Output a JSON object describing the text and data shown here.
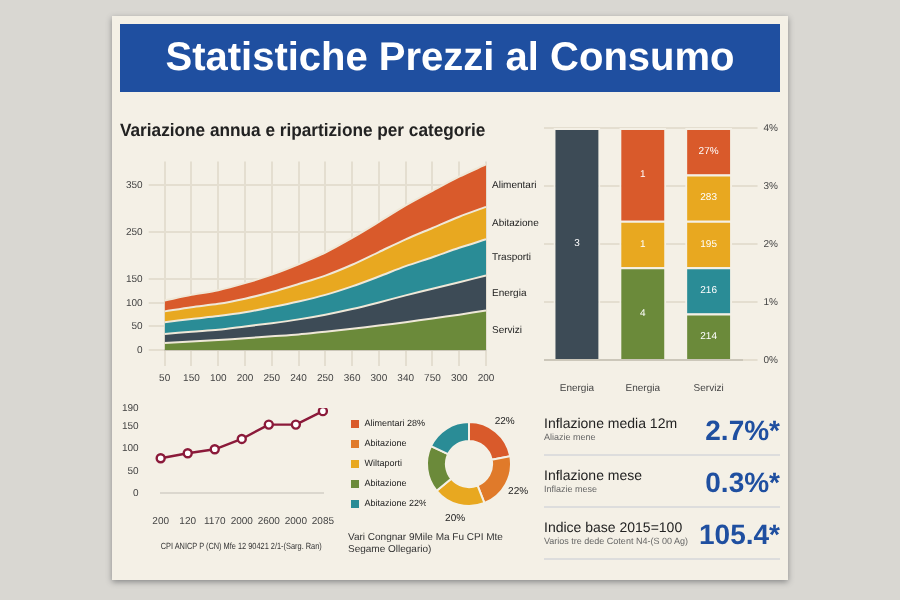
{
  "chart_data": [
    {
      "type": "area",
      "title": "Statistiche Prezzi al Consumo",
      "subtitle": "Variazione annua e ripartizione per categorie",
      "stacked": true,
      "grid": true,
      "categories": [
        "50",
        "150",
        "100",
        "200",
        "250",
        "240",
        "250",
        "360",
        "300",
        "340",
        "750",
        "300",
        "200"
      ],
      "ylim": [
        0,
        400
      ],
      "yticks": [
        0,
        50,
        100,
        150,
        250,
        350
      ],
      "series": [
        {
          "name": "Servizi",
          "color": "#6b8a3a",
          "values": [
            15,
            18,
            21,
            25,
            29,
            33,
            39,
            45,
            52,
            59,
            67,
            75,
            84
          ]
        },
        {
          "name": "Energia",
          "color": "#3d4b56",
          "values": [
            19,
            21,
            22,
            25,
            28,
            32,
            36,
            42,
            49,
            57,
            63,
            69,
            74
          ]
        },
        {
          "name": "Trasporti",
          "color": "#2a8c96",
          "values": [
            25,
            27,
            29,
            30,
            34,
            38,
            42,
            48,
            55,
            62,
            67,
            73,
            77
          ]
        },
        {
          "name": "Abitazione",
          "color": "#e8a820",
          "values": [
            23,
            25,
            26,
            29,
            32,
            37,
            41,
            46,
            52,
            57,
            62,
            66,
            69
          ]
        },
        {
          "name": "Alimentari",
          "color": "#d95a2b",
          "values": [
            23,
            26,
            29,
            33,
            37,
            42,
            49,
            57,
            64,
            72,
            79,
            85,
            90
          ]
        }
      ]
    },
    {
      "type": "bar",
      "stacked": true,
      "grid": "y",
      "categories": [
        "Energia",
        "Energia",
        "Servizi"
      ],
      "ylim": [
        0,
        4
      ],
      "yticks": [
        {
          "value": 0,
          "label": "0%"
        },
        {
          "value": 1,
          "label": "1%"
        },
        {
          "value": 2,
          "label": "2%"
        },
        {
          "value": 3,
          "label": "3%"
        },
        {
          "value": 4,
          "label": "4%"
        }
      ],
      "series": [
        {
          "color": "#3d4b56",
          "values": [
            4,
            null,
            null
          ]
        },
        {
          "color": "#6b8a3a",
          "values": [
            null,
            1.6,
            0.8
          ]
        },
        {
          "color": "#2a8c96",
          "values": [
            null,
            null,
            0.8
          ]
        },
        {
          "color": "#e8a820",
          "values": [
            null,
            0.8,
            0.8
          ]
        },
        {
          "color": "#e8a820",
          "values": [
            null,
            null,
            0.8
          ]
        },
        {
          "color": "#d95a2b",
          "values": [
            null,
            1.6,
            0.8
          ]
        }
      ],
      "annotations": [
        "3",
        "4",
        "1",
        "1",
        "214",
        "216",
        "195",
        "283",
        "27%"
      ]
    },
    {
      "type": "line",
      "xlabel": "CPI ANICP P (CN) Mfe 12 90421 2/1-(Sarg. Ran)",
      "marker": "circle",
      "categories": [
        "200",
        "120",
        "1170",
        "2000",
        "2600",
        "2000",
        "2085"
      ],
      "ylim": [
        0,
        190
      ],
      "yticks": [
        0,
        50,
        100,
        150,
        190
      ],
      "series": [
        {
          "color": "#8b1a3a",
          "values": [
            78,
            89,
            98,
            121,
            153,
            153,
            183
          ]
        }
      ]
    },
    {
      "type": "donut",
      "legend": "left",
      "categories": [
        "Alimentari 28%",
        "Abitazione",
        "Wiltaporti",
        "Abitazione",
        "Abitazione 22%"
      ],
      "values": [
        22,
        22,
        20,
        18,
        18
      ],
      "colors": [
        "#d95a2b",
        "#e07a2a",
        "#e8a820",
        "#6b8a3a",
        "#2a8c96"
      ],
      "value_labels": [
        "22%",
        "22%",
        "20%",
        null,
        null
      ],
      "annotations": [
        "Vari Congnar 9Mile Ma Fu CPI Mte Segame Ollegario)"
      ]
    },
    {
      "type": "other",
      "annotations": [
        "Inflazione media 12m",
        "Aliazie mene",
        "2.7%*",
        "Inflazione mese",
        "Inflazie mese",
        "0.3%*",
        "Indice base 2015=100",
        "Varios tre dede Cotent N4-(S 00 Ag)",
        "105.4*"
      ]
    }
  ]
}
